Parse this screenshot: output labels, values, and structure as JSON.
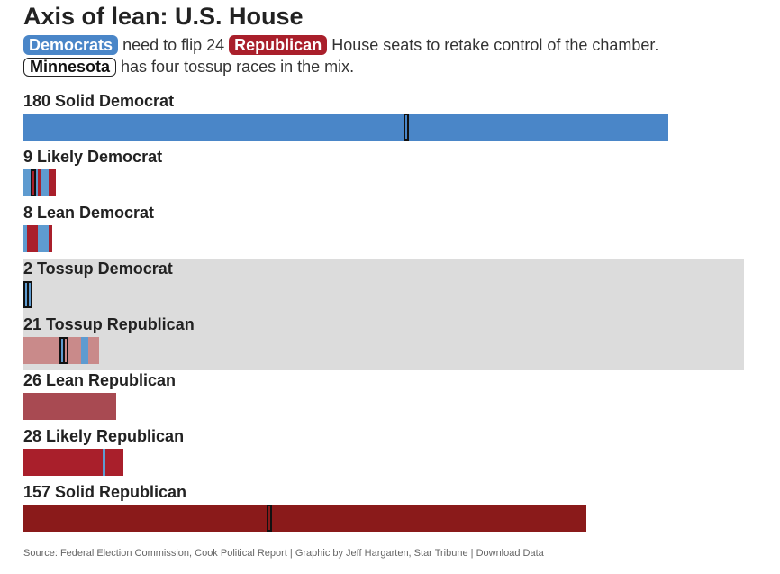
{
  "title": "Axis of lean: U.S. House",
  "subtitle": {
    "dem_label": "Democrats",
    "text1": "need to flip 24",
    "rep_label": "Republican",
    "text2": "House seats to retake control of the chamber.",
    "mn_label": "Minnesota",
    "text3": "has four tossup races in the mix."
  },
  "colors": {
    "dem": "#4a86c8",
    "dem_light": "#5e9bd0",
    "rep_likely": "#a91f2b",
    "rep_solid": "#8a1a1a",
    "rep_lean": "#a84a52",
    "rep_tossup": "#c98a8a",
    "tossup_bg": "#dcdcdc"
  },
  "chart_data": {
    "type": "bar",
    "orientation": "horizontal",
    "title": "Axis of lean: U.S. House",
    "categories": [
      {
        "count": 180,
        "label": "Solid Democrat",
        "segments": [
          {
            "party": "dem",
            "seats": 180
          }
        ],
        "minnesota_markers": [
          106
        ]
      },
      {
        "count": 9,
        "label": "Likely Democrat",
        "segments": [
          {
            "party": "dem_light",
            "seats": 2
          },
          {
            "party": "rep_likely",
            "seats": 1
          },
          {
            "party": "dem_light",
            "seats": 1
          },
          {
            "party": "rep_likely",
            "seats": 1
          },
          {
            "party": "dem_light",
            "seats": 2
          },
          {
            "party": "rep_likely",
            "seats": 2
          }
        ],
        "minnesota_markers": [
          2
        ]
      },
      {
        "count": 8,
        "label": "Lean Democrat",
        "segments": [
          {
            "party": "dem_light",
            "seats": 1
          },
          {
            "party": "rep_likely",
            "seats": 3
          },
          {
            "party": "dem_light",
            "seats": 3
          },
          {
            "party": "rep_likely",
            "seats": 1
          }
        ],
        "minnesota_markers": []
      },
      {
        "count": 2,
        "label": "Tossup Democrat",
        "segments": [
          {
            "party": "dem_light",
            "seats": 2
          }
        ],
        "minnesota_markers": [
          0,
          1
        ],
        "tossup": true
      },
      {
        "count": 21,
        "label": "Tossup Republican",
        "segments": [
          {
            "party": "rep_tossup",
            "seats": 10
          },
          {
            "party": "dem_light",
            "seats": 1
          },
          {
            "party": "rep_tossup",
            "seats": 5
          },
          {
            "party": "dem_light",
            "seats": 2
          },
          {
            "party": "rep_tossup",
            "seats": 3
          }
        ],
        "minnesota_markers": [
          10,
          11
        ],
        "tossup": true
      },
      {
        "count": 26,
        "label": "Lean Republican",
        "segments": [
          {
            "party": "rep_lean",
            "seats": 26
          }
        ],
        "minnesota_markers": []
      },
      {
        "count": 28,
        "label": "Likely Republican",
        "segments": [
          {
            "party": "rep_likely",
            "seats": 22
          },
          {
            "party": "dem_light",
            "seats": 1
          },
          {
            "party": "rep_likely",
            "seats": 5
          }
        ],
        "minnesota_markers": []
      },
      {
        "count": 157,
        "label": "Solid Republican",
        "segments": [
          {
            "party": "rep_solid",
            "seats": 157
          }
        ],
        "minnesota_markers": [
          68
        ]
      }
    ]
  },
  "source": {
    "text": "Source: Federal Election Commission, Cook Political Report | Graphic by Jeff Hargarten, Star Tribune | ",
    "download_label": "Download Data"
  }
}
